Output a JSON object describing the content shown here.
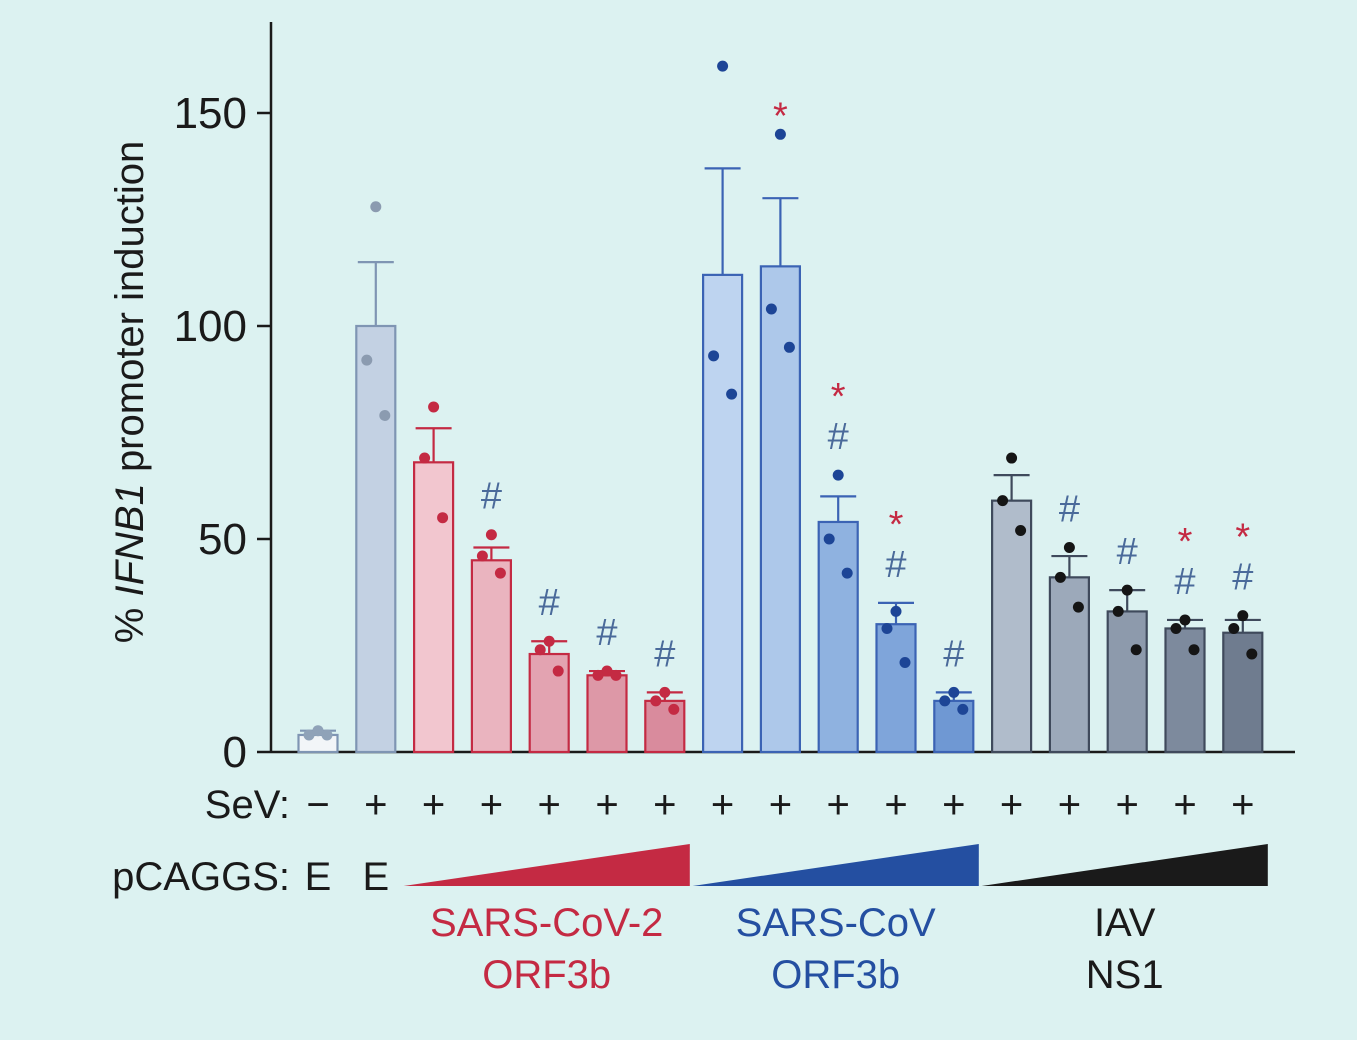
{
  "chart_data": {
    "type": "bar",
    "ylabel_prefix": "% ",
    "ylabel_gene": "IFNB1",
    "ylabel_suffix": " promoter induction",
    "ylim": [
      0,
      170
    ],
    "yticks": [
      0,
      50,
      100,
      150
    ],
    "grid": false,
    "bars": [
      {
        "value": 4,
        "err": 1,
        "points": [
          5,
          4,
          4
        ],
        "color": "#f2f5f8",
        "edge": "#7f95b3",
        "dot": "#8fa2b8",
        "sev": "−",
        "pcaggs": "E",
        "hash": "",
        "star": ""
      },
      {
        "value": 100,
        "err": 15,
        "points": [
          128,
          92,
          79
        ],
        "color": "#c3d1e3",
        "edge": "#7f95b3",
        "dot": "#8b9bb0",
        "sev": "+",
        "pcaggs": "E",
        "hash": "",
        "star": ""
      },
      {
        "value": 68,
        "err": 8,
        "points": [
          81,
          69,
          55
        ],
        "color": "#f2c6cf",
        "edge": "#c42a43",
        "dot": "#c42a43",
        "sev": "+",
        "pcaggs": "",
        "hash": "",
        "star": ""
      },
      {
        "value": 45,
        "err": 3,
        "points": [
          51,
          46,
          42
        ],
        "color": "#eab4bf",
        "edge": "#c42a43",
        "dot": "#c42a43",
        "sev": "+",
        "pcaggs": "",
        "hash": "#",
        "star": ""
      },
      {
        "value": 23,
        "err": 3,
        "points": [
          26,
          24,
          19
        ],
        "color": "#e3a3b1",
        "edge": "#c42a43",
        "dot": "#c42a43",
        "sev": "+",
        "pcaggs": "",
        "hash": "#",
        "star": ""
      },
      {
        "value": 18,
        "err": 1,
        "points": [
          19,
          18,
          18
        ],
        "color": "#dd98a7",
        "edge": "#c42a43",
        "dot": "#c42a43",
        "sev": "+",
        "pcaggs": "",
        "hash": "#",
        "star": ""
      },
      {
        "value": 12,
        "err": 2,
        "points": [
          14,
          12,
          10
        ],
        "color": "#d98b9d",
        "edge": "#c42a43",
        "dot": "#c42a43",
        "sev": "+",
        "pcaggs": "",
        "hash": "#",
        "star": ""
      },
      {
        "value": 112,
        "err": 25,
        "points": [
          161,
          93,
          84
        ],
        "color": "#bed4f0",
        "edge": "#3b63b4",
        "dot": "#1d4596",
        "sev": "+",
        "pcaggs": "",
        "hash": "",
        "star": ""
      },
      {
        "value": 114,
        "err": 16,
        "points": [
          145,
          104,
          95
        ],
        "color": "#adc8ea",
        "edge": "#3b63b4",
        "dot": "#1d4596",
        "sev": "+",
        "pcaggs": "",
        "hash": "",
        "star": "*"
      },
      {
        "value": 54,
        "err": 6,
        "points": [
          65,
          50,
          42
        ],
        "color": "#8fb2e0",
        "edge": "#3b63b4",
        "dot": "#1d4596",
        "sev": "+",
        "pcaggs": "",
        "hash": "#",
        "star": "*"
      },
      {
        "value": 30,
        "err": 5,
        "points": [
          33,
          29,
          21
        ],
        "color": "#7fa5da",
        "edge": "#3b63b4",
        "dot": "#1d4596",
        "sev": "+",
        "pcaggs": "",
        "hash": "#",
        "star": "*"
      },
      {
        "value": 12,
        "err": 2,
        "points": [
          14,
          12,
          10
        ],
        "color": "#6f98d3",
        "edge": "#3b63b4",
        "dot": "#1d4596",
        "sev": "+",
        "pcaggs": "",
        "hash": "#",
        "star": ""
      },
      {
        "value": 59,
        "err": 6,
        "points": [
          69,
          59,
          52
        ],
        "color": "#b0bccb",
        "edge": "#3f4a5c",
        "dot": "#151515",
        "sev": "+",
        "pcaggs": "",
        "hash": "",
        "star": ""
      },
      {
        "value": 41,
        "err": 5,
        "points": [
          48,
          41,
          34
        ],
        "color": "#9ca9ba",
        "edge": "#3f4a5c",
        "dot": "#151515",
        "sev": "+",
        "pcaggs": "",
        "hash": "#",
        "star": ""
      },
      {
        "value": 33,
        "err": 5,
        "points": [
          38,
          33,
          24
        ],
        "color": "#8d9aac",
        "edge": "#3f4a5c",
        "dot": "#151515",
        "sev": "+",
        "pcaggs": "",
        "hash": "#",
        "star": ""
      },
      {
        "value": 29,
        "err": 2,
        "points": [
          31,
          29,
          24
        ],
        "color": "#7d8a9d",
        "edge": "#3f4a5c",
        "dot": "#151515",
        "sev": "+",
        "pcaggs": "",
        "hash": "#",
        "star": "*"
      },
      {
        "value": 28,
        "err": 3,
        "points": [
          32,
          29,
          23
        ],
        "color": "#6f7c8f",
        "edge": "#3f4a5c",
        "dot": "#151515",
        "sev": "+",
        "pcaggs": "",
        "hash": "#",
        "star": "*"
      }
    ],
    "row_labels": {
      "sev": "SeV:",
      "pcaggs": "pCAGGS:"
    },
    "groups": [
      {
        "lines": [
          "SARS-CoV-2",
          "ORF3b"
        ],
        "color": "#c42a43",
        "from_bar": 2,
        "to_bar": 6
      },
      {
        "lines": [
          "SARS-CoV",
          "ORF3b"
        ],
        "color": "#244fa1",
        "from_bar": 7,
        "to_bar": 11
      },
      {
        "lines": [
          "IAV",
          "NS1"
        ],
        "color": "#1a1a1a",
        "from_bar": 12,
        "to_bar": 16
      }
    ],
    "colors": {
      "axis": "#1a1a1a",
      "hash": "#4a6a9a",
      "star": "#c42a43"
    }
  }
}
